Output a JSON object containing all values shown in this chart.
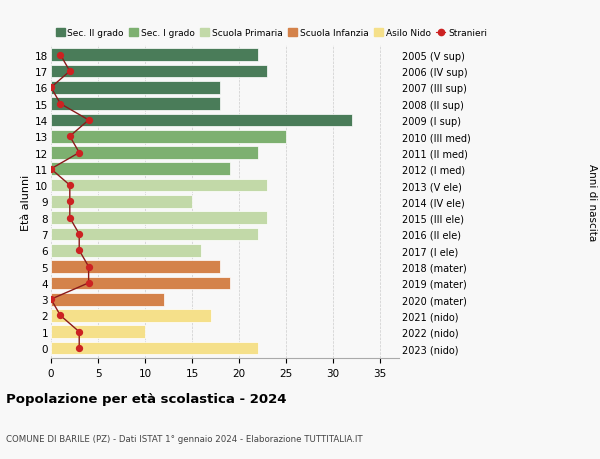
{
  "ages": [
    18,
    17,
    16,
    15,
    14,
    13,
    12,
    11,
    10,
    9,
    8,
    7,
    6,
    5,
    4,
    3,
    2,
    1,
    0
  ],
  "bar_values": [
    22,
    23,
    18,
    18,
    32,
    25,
    22,
    19,
    23,
    15,
    23,
    22,
    16,
    18,
    19,
    12,
    17,
    10,
    22
  ],
  "stranieri_values": [
    1,
    2,
    0,
    1,
    4,
    2,
    3,
    0,
    2,
    2,
    2,
    3,
    3,
    4,
    4,
    0,
    1,
    3,
    3
  ],
  "bar_colors": [
    "#4a7c59",
    "#4a7c59",
    "#4a7c59",
    "#4a7c59",
    "#4a7c59",
    "#7db070",
    "#7db070",
    "#7db070",
    "#c2d9a8",
    "#c2d9a8",
    "#c2d9a8",
    "#c2d9a8",
    "#c2d9a8",
    "#d4824a",
    "#d4824a",
    "#d4824a",
    "#f5e08a",
    "#f5e08a",
    "#f5e08a"
  ],
  "right_labels": [
    "2005 (V sup)",
    "2006 (IV sup)",
    "2007 (III sup)",
    "2008 (II sup)",
    "2009 (I sup)",
    "2010 (III med)",
    "2011 (II med)",
    "2012 (I med)",
    "2013 (V ele)",
    "2014 (IV ele)",
    "2015 (III ele)",
    "2016 (II ele)",
    "2017 (I ele)",
    "2018 (mater)",
    "2019 (mater)",
    "2020 (mater)",
    "2021 (nido)",
    "2022 (nido)",
    "2023 (nido)"
  ],
  "legend_labels": [
    "Sec. II grado",
    "Sec. I grado",
    "Scuola Primaria",
    "Scuola Infanzia",
    "Asilo Nido",
    "Stranieri"
  ],
  "legend_colors": [
    "#4a7c59",
    "#7db070",
    "#c2d9a8",
    "#d4824a",
    "#f5e08a",
    "#b22222"
  ],
  "ylabel_left": "Età alunni",
  "ylabel_right": "Anni di nascita",
  "title": "Popolazione per età scolastica - 2024",
  "subtitle": "COMUNE DI BARILE (PZ) - Dati ISTAT 1° gennaio 2024 - Elaborazione TUTTITALIA.IT",
  "xlim": [
    0,
    37
  ],
  "background_color": "#f8f8f8",
  "bar_height": 0.78,
  "grid_color": "#cccccc",
  "stranieri_line_color": "#8b1a1a",
  "stranieri_dot_color": "#cc2222"
}
